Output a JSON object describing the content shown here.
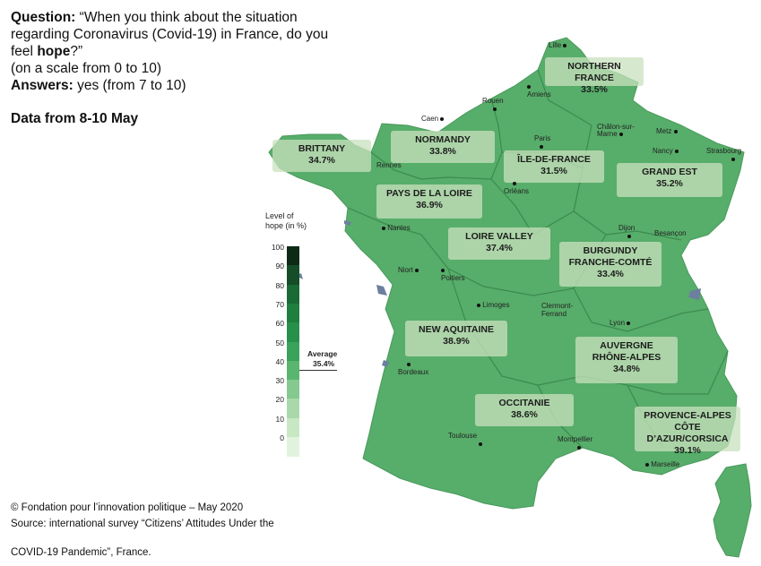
{
  "question": {
    "label": "Question:",
    "text_part1": "“When you think about the situation regarding Coronavirus (Covid-19) in France, do you feel ",
    "hope_word": "hope",
    "text_part2": "?”",
    "scale_note": "(on a scale from 0 to 10)",
    "answers_label": "Answers:",
    "answers_text": " yes (from 7 to 10)"
  },
  "data_range": "Data from 8-10 May",
  "footer": {
    "line1": "© Fondation pour l’innovation politique – May 2020",
    "line2": "Source: international survey “Citizens’ Attitudes Under the",
    "line3": "COVID-19 Pandemic”, France."
  },
  "legend": {
    "title_line1": "Level of",
    "title_line2": "hope (in %)",
    "ticks": [
      "100",
      "90",
      "80",
      "70",
      "60",
      "50",
      "40",
      "30",
      "20",
      "10",
      "0"
    ],
    "swatch_colors": [
      "#0d2a16",
      "#144d28",
      "#196a35",
      "#1f7f3f",
      "#27904a",
      "#3aa25a",
      "#5ab56f",
      "#84c98f",
      "#a9d9ab",
      "#c8e8c4",
      "#e2f3dd"
    ],
    "average_label": "Average",
    "average_value": "35.4%"
  },
  "colors": {
    "land": "#57ad6a",
    "border": "#3c8a4f",
    "water": "#6d7f9e"
  },
  "regions": [
    {
      "name": "NORTHERN FRANCE",
      "value": "33.5%"
    },
    {
      "name": "NORMANDY",
      "value": "33.8%"
    },
    {
      "name": "BRITTANY",
      "value": "34.7%"
    },
    {
      "name": "ÎLE-DE-FRANCE",
      "value": "31.5%"
    },
    {
      "name": "GRAND EST",
      "value": "35.2%"
    },
    {
      "name": "PAYS DE LA LOIRE",
      "value": "36.9%"
    },
    {
      "name": "LOIRE VALLEY",
      "value": "37.4%"
    },
    {
      "name_line1": "BURGUNDY",
      "name_line2": "FRANCHE-COMTÉ",
      "value": "33.4%"
    },
    {
      "name": "NEW AQUITAINE",
      "value": "38.9%"
    },
    {
      "name_line1": "AUVERGNE",
      "name_line2": "RHÔNE-ALPES",
      "value": "34.8%"
    },
    {
      "name": "OCCITANIE",
      "value": "38.6%"
    },
    {
      "name_line1": "PROVENCE-ALPES",
      "name_line2": "CÔTE D’AZUR/CORSICA",
      "value": "39.1%"
    }
  ],
  "cities": [
    "Lille",
    "Amiens",
    "Rouen",
    "Caen",
    "Paris",
    "Châlon-sur-Marne",
    "Metz",
    "Nancy",
    "Strasbourg",
    "Rennes",
    "Orléans",
    "Nantes",
    "Dijon",
    "Besançon",
    "Niort",
    "Poitiers",
    "Limoges",
    "Clermont-Ferrand",
    "Lyon",
    "Bordeaux",
    "Toulouse",
    "Montpellier",
    "Marseille"
  ]
}
